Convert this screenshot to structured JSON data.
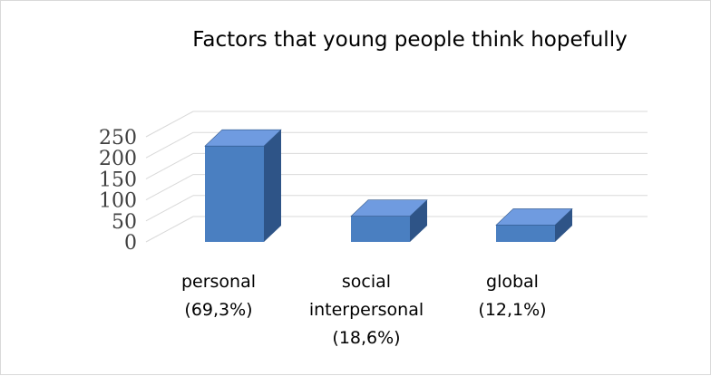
{
  "chart_data": {
    "type": "bar",
    "title": "Factors that young people think hopefully",
    "categories": [
      [
        "personal",
        "(69,3%)"
      ],
      [
        "social",
        "interpersonal",
        "(18,6%)"
      ],
      [
        "global",
        "(12,1%)"
      ]
    ],
    "values": [
      228,
      61,
      40
    ],
    "ylim": [
      0,
      250
    ],
    "yticks": [
      "0",
      "50",
      "100",
      "150",
      "200",
      "250"
    ],
    "grid": true,
    "style": "3d-column",
    "colors": {
      "front": "#4a7fc1",
      "top": "#6f9be0",
      "side": "#2e5487",
      "grid": "#d9d9d9"
    }
  }
}
